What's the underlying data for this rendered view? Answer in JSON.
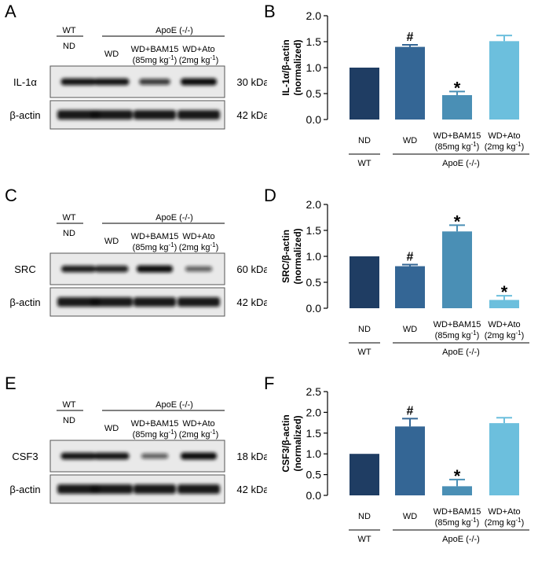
{
  "header_labels": {
    "wt": "WT",
    "apoe": "ApoE (-/-)",
    "nd": "ND",
    "wd": "WD",
    "bam15_line1": "WD+BAM15",
    "bam15_line2": "(85mg kg",
    "ato_line1": "WD+Ato",
    "ato_line2": "(2mg kg",
    "sup": "-1",
    "close": ")"
  },
  "blots": [
    {
      "letter": "A",
      "protein": "IL-1α",
      "protein_kda": "30 kDa",
      "control": "β-actin",
      "control_kda": "42 kDa",
      "band_intensity": [
        0.95,
        0.95,
        0.7,
        1.0
      ],
      "control_intensity": [
        0.95,
        0.95,
        0.95,
        0.95
      ]
    },
    {
      "letter": "C",
      "protein": "SRC",
      "protein_kda": "60 kDa",
      "control": "β-actin",
      "control_kda": "42 kDa",
      "band_intensity": [
        0.9,
        0.85,
        1.0,
        0.45
      ],
      "control_intensity": [
        0.95,
        0.95,
        0.95,
        0.95
      ]
    },
    {
      "letter": "E",
      "protein": "CSF3",
      "protein_kda": "18 kDa",
      "control": "β-actin",
      "control_kda": "42 kDa",
      "band_intensity": [
        0.95,
        0.95,
        0.45,
        1.0
      ],
      "control_intensity": [
        0.95,
        0.95,
        0.95,
        0.95
      ]
    }
  ],
  "chart_data": [
    {
      "letter": "B",
      "type": "bar",
      "ylabel_line1": "IL-1α/β-actin",
      "ylabel_line2": "(normalized)",
      "ylim": [
        0,
        2.0
      ],
      "yticks": [
        "0.0",
        "0.5",
        "1.0",
        "1.5",
        "2.0"
      ],
      "categories": [
        "ND",
        "WD",
        "WD+BAM15",
        "WD+Ato"
      ],
      "cat_sub": [
        "",
        "",
        "(85mg kg",
        "(2mg kg"
      ],
      "values": [
        1.0,
        1.4,
        0.47,
        1.51
      ],
      "errors": [
        0.0,
        0.04,
        0.07,
        0.11
      ],
      "markers": [
        "",
        "#",
        "*",
        ""
      ],
      "colors": [
        "#1f3d63",
        "#346695",
        "#4a8fb5",
        "#6cbfdd"
      ],
      "group_wt": "WT",
      "group_apoe": "ApoE (-/-)"
    },
    {
      "letter": "D",
      "type": "bar",
      "ylabel_line1": "SRC/β-actin",
      "ylabel_line2": "(normalized)",
      "ylim": [
        0,
        2.0
      ],
      "yticks": [
        "0.0",
        "0.5",
        "1.0",
        "1.5",
        "2.0"
      ],
      "categories": [
        "ND",
        "WD",
        "WD+BAM15",
        "WD+Ato"
      ],
      "cat_sub": [
        "",
        "",
        "(85mg kg",
        "(2mg kg"
      ],
      "values": [
        1.0,
        0.81,
        1.48,
        0.16
      ],
      "errors": [
        0.0,
        0.03,
        0.12,
        0.08
      ],
      "markers": [
        "",
        "#",
        "*",
        "*"
      ],
      "colors": [
        "#1f3d63",
        "#346695",
        "#4a8fb5",
        "#6cbfdd"
      ],
      "group_wt": "WT",
      "group_apoe": "ApoE (-/-)"
    },
    {
      "letter": "F",
      "type": "bar",
      "ylabel_line1": "CSF3/β-actin",
      "ylabel_line2": "(normalized)",
      "ylim": [
        0,
        2.5
      ],
      "yticks": [
        "0.0",
        "0.5",
        "1.0",
        "1.5",
        "2.0",
        "2.5"
      ],
      "categories": [
        "ND",
        "WD",
        "WD+BAM15",
        "WD+Ato"
      ],
      "cat_sub": [
        "",
        "",
        "(85mg kg",
        "(2mg kg"
      ],
      "values": [
        1.0,
        1.66,
        0.22,
        1.74
      ],
      "errors": [
        0.0,
        0.19,
        0.16,
        0.13
      ],
      "markers": [
        "",
        "#",
        "*",
        ""
      ],
      "colors": [
        "#1f3d63",
        "#346695",
        "#4a8fb5",
        "#6cbfdd"
      ],
      "group_wt": "WT",
      "group_apoe": "ApoE (-/-)"
    }
  ]
}
